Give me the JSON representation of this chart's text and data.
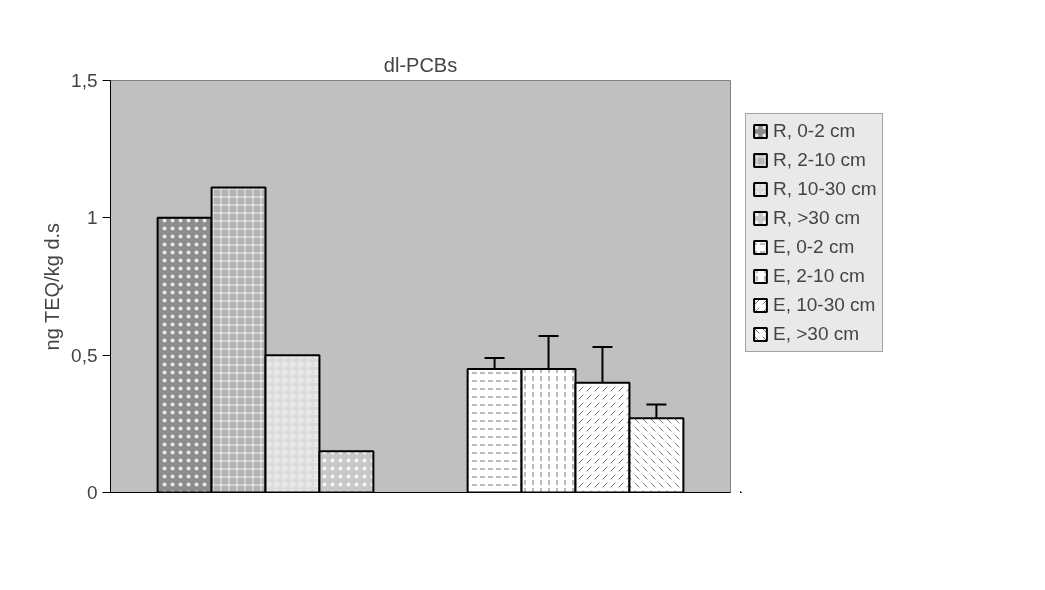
{
  "chart_data": {
    "type": "bar",
    "title": "dl-PCBs",
    "ylabel": "ng TEQ/kg d.s",
    "categories": [
      null,
      null
    ],
    "series": [
      {
        "name": "R, 0-2 cm",
        "color": "#8c8c8c",
        "values": [
          1.0,
          null
        ]
      },
      {
        "name": "R, 2-10 cm",
        "color": "#b4b4b4",
        "values": [
          1.11,
          null
        ]
      },
      {
        "name": "R, 10-30 cm",
        "color": "#dcdcdc",
        "values": [
          0.5,
          null
        ]
      },
      {
        "name": "R, >30 cm",
        "color": "#c8c8c8",
        "values": [
          0.15,
          null
        ]
      },
      {
        "name": "E, 0-2 cm",
        "color": "#ffffff",
        "values": [
          null,
          0.45
        ],
        "errors": [
          null,
          [
            0.43,
            0.49
          ]
        ]
      },
      {
        "name": "E, 2-10 cm",
        "color": "#ffffff",
        "values": [
          null,
          0.45
        ],
        "errors": [
          null,
          [
            0.36,
            0.57
          ]
        ]
      },
      {
        "name": "E, 10-30 cm",
        "color": "#ffffff",
        "values": [
          null,
          0.4
        ],
        "errors": [
          null,
          [
            0.32,
            0.53
          ]
        ]
      },
      {
        "name": "E, >30 cm",
        "color": "#ffffff",
        "values": [
          null,
          0.27
        ],
        "errors": [
          null,
          [
            0.22,
            0.32
          ]
        ]
      }
    ],
    "ylim": [
      0,
      1.5
    ],
    "yticks": [
      0,
      {
        "value": 0.5,
        "label": "0,5"
      },
      1,
      {
        "value": 1.5,
        "label": "1,5"
      }
    ],
    "grid": false,
    "legend": "right"
  }
}
